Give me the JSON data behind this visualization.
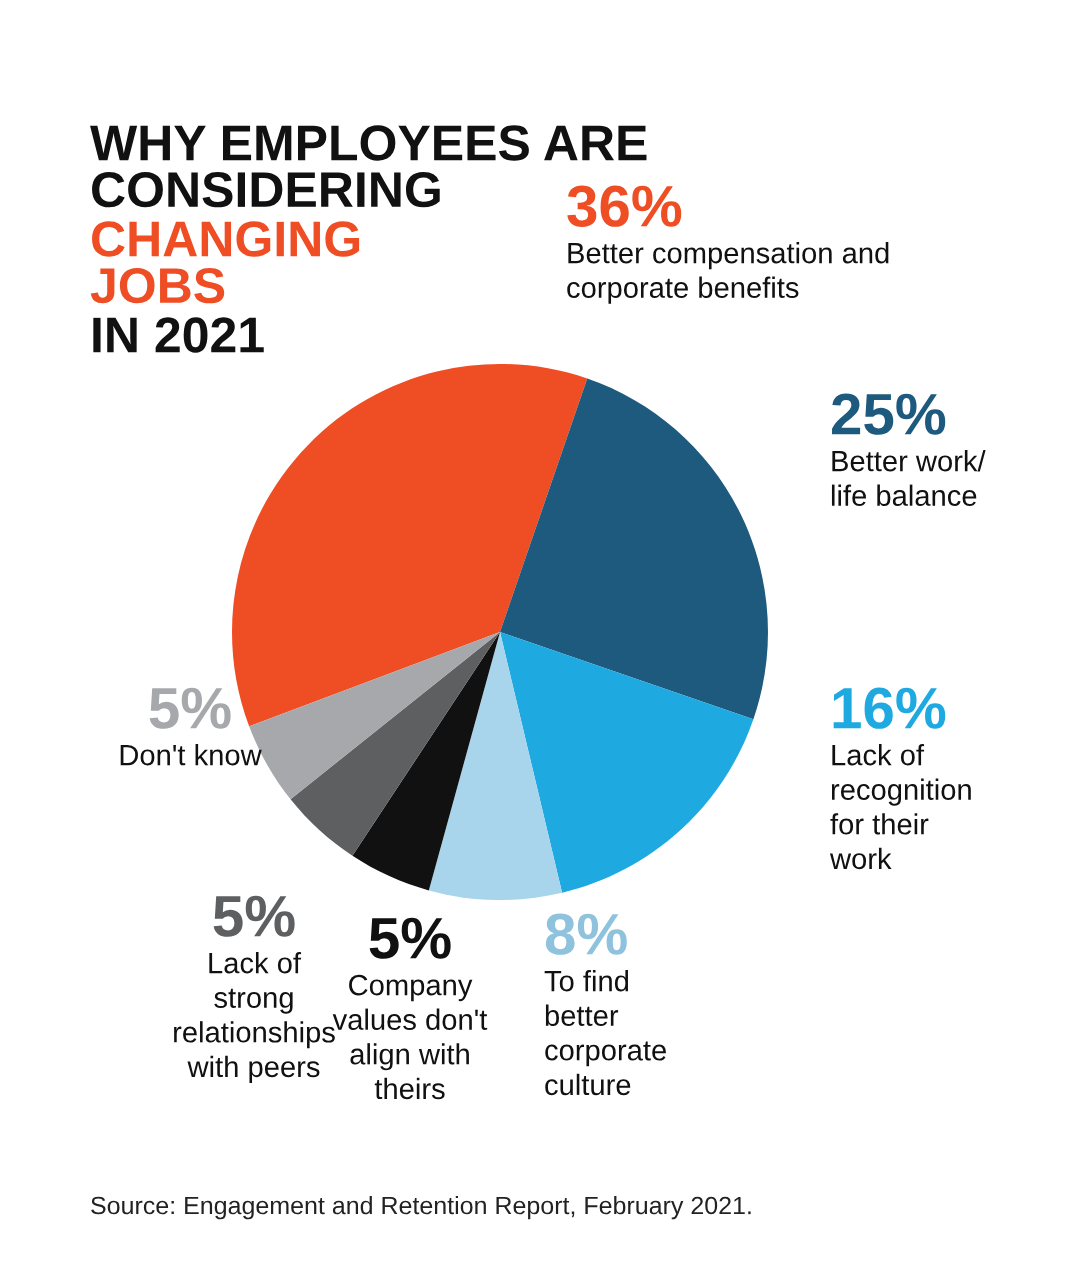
{
  "chart_data": {
    "type": "pie",
    "title": "WHY EMPLOYEES ARE\nCONSIDERING",
    "subtitle": "CHANGING\nJOBS",
    "annotations": [
      "IN 2021",
      "Source: Engagement and Retention Report, February 2021."
    ],
    "categories": [
      "Better compensation and\ncorporate benefits",
      "Better work/\nlife balance",
      "Lack of\nrecognition\nfor their\nwork",
      "To find\nbetter\ncorporate\nculture",
      "Company\nvalues don't\nalign with\ntheirs",
      "Lack of\nstrong\nrelationships\nwith peers",
      "Don't know"
    ],
    "values": [
      36,
      25,
      16,
      8,
      5,
      5,
      5
    ],
    "value_labels": [
      "36%",
      "25%",
      "16%",
      "8%",
      "5%",
      "5%",
      "5%"
    ],
    "colors": [
      "#ef4e24",
      "#1d5a7e",
      "#1ea9e1",
      "#a9d5ec",
      "#111111",
      "#5e5f61",
      "#a6a8ab"
    ],
    "legend": false
  }
}
